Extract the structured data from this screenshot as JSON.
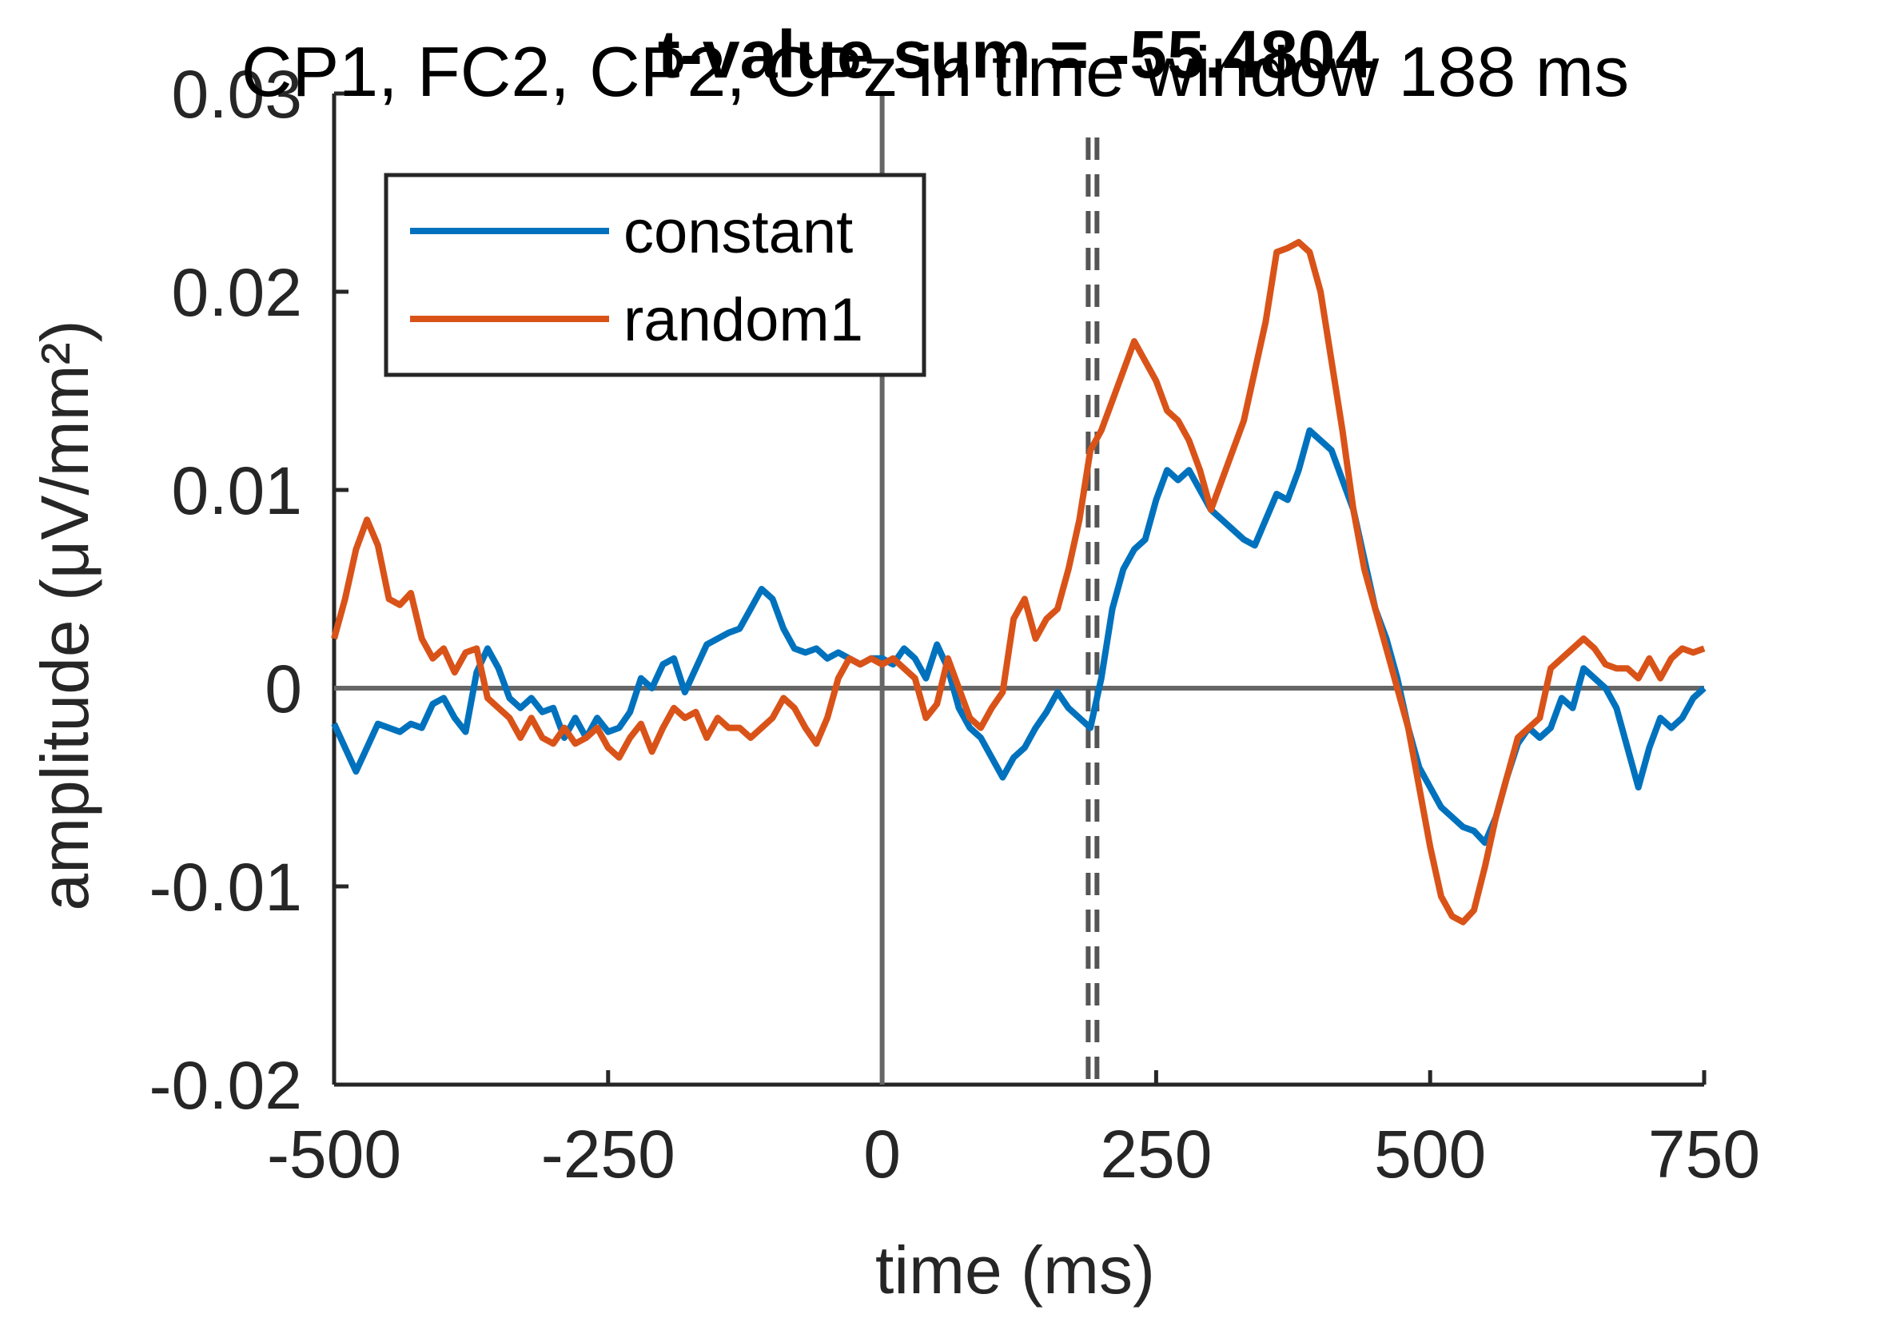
{
  "chart_data": {
    "type": "line",
    "title": "CP1, FC2, CP2, CPz in time window 188 ms",
    "subtitle": "t-value sum = -55.4804",
    "xlabel": "time (ms)",
    "ylabel": "amplitude (μV/mm²)",
    "xlim": [
      -500,
      750
    ],
    "ylim": [
      -0.02,
      0.03
    ],
    "xticks": [
      -500,
      -250,
      0,
      250,
      500,
      750
    ],
    "xtick_labels": [
      "-500",
      "-250",
      "0",
      "250",
      "500",
      "750"
    ],
    "yticks": [
      -0.02,
      -0.01,
      0,
      0.01,
      0.02,
      0.03
    ],
    "ytick_labels": [
      "-0.02",
      "-0.01",
      "0",
      "0.01",
      "0.02",
      "0.03"
    ],
    "legend_position": "top-left",
    "reference_lines": {
      "zero_x": 0,
      "zero_y": 0
    },
    "time_window_ms": [
      188,
      196
    ],
    "series": [
      {
        "name": "constant",
        "color": "#0072BD",
        "x": [
          -500,
          -490,
          -480,
          -470,
          -460,
          -450,
          -440,
          -430,
          -420,
          -410,
          -400,
          -390,
          -380,
          -370,
          -360,
          -350,
          -340,
          -330,
          -320,
          -310,
          -300,
          -290,
          -280,
          -270,
          -260,
          -250,
          -240,
          -230,
          -220,
          -210,
          -200,
          -190,
          -180,
          -170,
          -160,
          -150,
          -140,
          -130,
          -120,
          -110,
          -100,
          -90,
          -80,
          -70,
          -60,
          -50,
          -40,
          -30,
          -20,
          -10,
          0,
          10,
          20,
          30,
          40,
          50,
          60,
          70,
          80,
          90,
          100,
          110,
          120,
          130,
          140,
          150,
          160,
          170,
          180,
          190,
          200,
          210,
          220,
          230,
          240,
          250,
          260,
          270,
          280,
          290,
          300,
          310,
          320,
          330,
          340,
          350,
          360,
          370,
          380,
          390,
          400,
          410,
          420,
          430,
          440,
          450,
          460,
          470,
          480,
          490,
          500,
          510,
          520,
          530,
          540,
          550,
          560,
          570,
          580,
          590,
          600,
          610,
          620,
          630,
          640,
          650,
          660,
          670,
          680,
          690,
          700,
          710,
          720,
          730,
          740,
          750
        ],
        "y": [
          -0.0018,
          -0.003,
          -0.0042,
          -0.003,
          -0.0018,
          -0.002,
          -0.0022,
          -0.0018,
          -0.002,
          -0.0008,
          -0.0005,
          -0.0015,
          -0.0022,
          0.0008,
          0.002,
          0.001,
          -0.0005,
          -0.001,
          -0.0005,
          -0.0012,
          -0.001,
          -0.0025,
          -0.0015,
          -0.0025,
          -0.0015,
          -0.0022,
          -0.002,
          -0.0012,
          0.0005,
          0.0,
          0.0012,
          0.0015,
          -0.0002,
          0.001,
          0.0022,
          0.0025,
          0.0028,
          0.003,
          0.004,
          0.005,
          0.0045,
          0.003,
          0.002,
          0.0018,
          0.002,
          0.0015,
          0.0018,
          0.0015,
          0.0012,
          0.0015,
          0.0015,
          0.0012,
          0.002,
          0.0015,
          0.0005,
          0.0022,
          0.001,
          -0.001,
          -0.002,
          -0.0025,
          -0.0035,
          -0.0045,
          -0.0035,
          -0.003,
          -0.002,
          -0.0012,
          -0.0002,
          -0.001,
          -0.0015,
          -0.002,
          0.0005,
          0.004,
          0.006,
          0.007,
          0.0075,
          0.0095,
          0.011,
          0.0105,
          0.011,
          0.01,
          0.009,
          0.0085,
          0.008,
          0.0075,
          0.0072,
          0.0085,
          0.0098,
          0.0095,
          0.011,
          0.013,
          0.0125,
          0.012,
          0.0105,
          0.009,
          0.0065,
          0.004,
          0.0025,
          0.0005,
          -0.002,
          -0.004,
          -0.005,
          -0.006,
          -0.0065,
          -0.007,
          -0.0072,
          -0.0078,
          -0.0065,
          -0.0045,
          -0.0028,
          -0.002,
          -0.0025,
          -0.002,
          -0.0005,
          -0.001,
          0.001,
          0.0005,
          0.0,
          -0.001,
          -0.003,
          -0.005,
          -0.003,
          -0.0015,
          -0.002,
          -0.0015,
          -0.0005,
          0.0
        ]
      },
      {
        "name": "random1",
        "color": "#D95319",
        "x": [
          -500,
          -490,
          -480,
          -470,
          -460,
          -450,
          -440,
          -430,
          -420,
          -410,
          -400,
          -390,
          -380,
          -370,
          -360,
          -350,
          -340,
          -330,
          -320,
          -310,
          -300,
          -290,
          -280,
          -270,
          -260,
          -250,
          -240,
          -230,
          -220,
          -210,
          -200,
          -190,
          -180,
          -170,
          -160,
          -150,
          -140,
          -130,
          -120,
          -110,
          -100,
          -90,
          -80,
          -70,
          -60,
          -50,
          -40,
          -30,
          -20,
          -10,
          0,
          10,
          20,
          30,
          40,
          50,
          60,
          70,
          80,
          90,
          100,
          110,
          120,
          130,
          140,
          150,
          160,
          170,
          180,
          190,
          200,
          210,
          220,
          230,
          240,
          250,
          260,
          270,
          280,
          290,
          300,
          310,
          320,
          330,
          340,
          350,
          360,
          370,
          380,
          390,
          400,
          410,
          420,
          430,
          440,
          450,
          460,
          470,
          480,
          490,
          500,
          510,
          520,
          530,
          540,
          550,
          560,
          570,
          580,
          590,
          600,
          610,
          620,
          630,
          640,
          650,
          660,
          670,
          680,
          690,
          700,
          710,
          720,
          730,
          740,
          750
        ],
        "y": [
          0.0025,
          0.0045,
          0.007,
          0.0085,
          0.0072,
          0.0045,
          0.0042,
          0.0048,
          0.0025,
          0.0015,
          0.002,
          0.0008,
          0.0018,
          0.002,
          -0.0005,
          -0.001,
          -0.0015,
          -0.0025,
          -0.0015,
          -0.0025,
          -0.0028,
          -0.002,
          -0.0028,
          -0.0025,
          -0.002,
          -0.003,
          -0.0035,
          -0.0025,
          -0.0018,
          -0.0032,
          -0.002,
          -0.001,
          -0.0015,
          -0.0012,
          -0.0025,
          -0.0015,
          -0.002,
          -0.002,
          -0.0025,
          -0.002,
          -0.0015,
          -0.0005,
          -0.001,
          -0.002,
          -0.0028,
          -0.0015,
          0.0005,
          0.0015,
          0.0012,
          0.0015,
          0.0012,
          0.0015,
          0.001,
          0.0005,
          -0.0015,
          -0.0008,
          0.0015,
          0.0,
          -0.0015,
          -0.002,
          -0.001,
          -0.0002,
          0.0035,
          0.0045,
          0.0025,
          0.0035,
          0.004,
          0.006,
          0.0085,
          0.012,
          0.013,
          0.0145,
          0.016,
          0.0175,
          0.0165,
          0.0155,
          0.014,
          0.0135,
          0.0125,
          0.011,
          0.009,
          0.0105,
          0.012,
          0.0135,
          0.016,
          0.0185,
          0.022,
          0.0222,
          0.0225,
          0.022,
          0.02,
          0.0165,
          0.013,
          0.009,
          0.006,
          0.004,
          0.002,
          0.0,
          -0.002,
          -0.005,
          -0.008,
          -0.0105,
          -0.0115,
          -0.0118,
          -0.0112,
          -0.009,
          -0.0065,
          -0.0045,
          -0.0025,
          -0.002,
          -0.0015,
          0.001,
          0.0015,
          0.002,
          0.0025,
          0.002,
          0.0012,
          0.001,
          0.001,
          0.0005,
          0.0015,
          0.0005,
          0.0015,
          0.002,
          0.0018,
          0.002
        ]
      }
    ]
  }
}
